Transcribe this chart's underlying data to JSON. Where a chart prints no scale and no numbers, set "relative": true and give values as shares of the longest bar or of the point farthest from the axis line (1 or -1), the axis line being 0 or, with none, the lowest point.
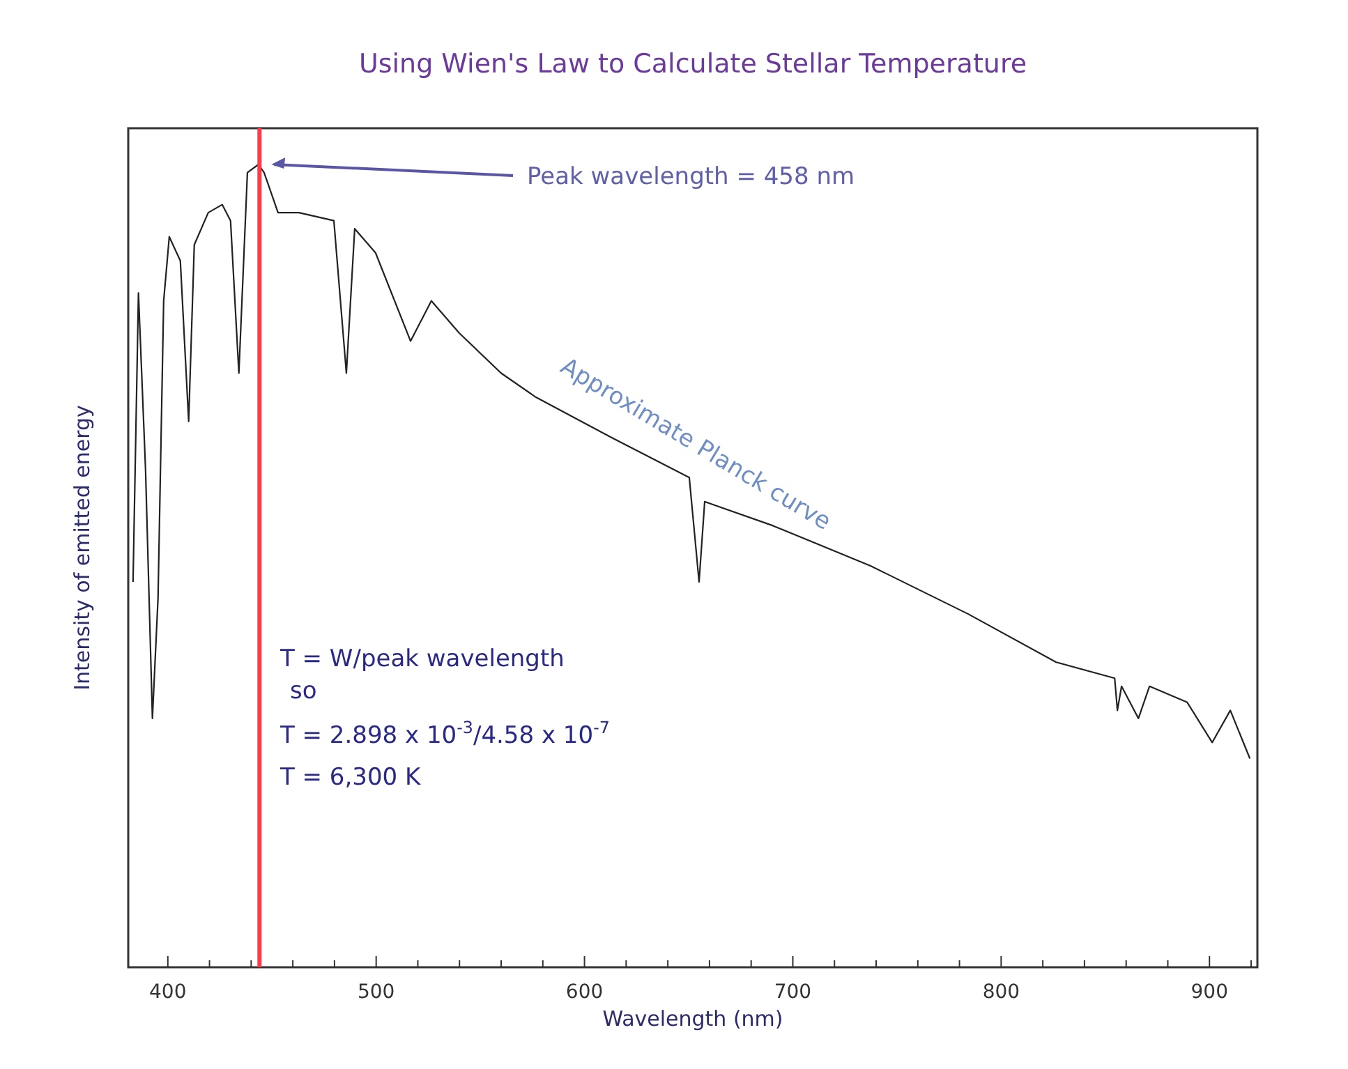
{
  "chart_data": {
    "type": "line",
    "title": "Using Wien's Law to Calculate Stellar Temperature",
    "xlabel": "Wavelength (nm)",
    "ylabel": "Intensity of emitted energy",
    "relative": true,
    "xlim": [
      381,
      923
    ],
    "xticks": [
      400,
      {
        "value": 420,
        "label": null
      },
      {
        "value": 440,
        "label": null
      },
      {
        "value": 460,
        "label": null
      },
      {
        "value": 480,
        "label": null
      },
      500,
      {
        "value": 520,
        "label": null
      },
      {
        "value": 540,
        "label": null
      },
      {
        "value": 560,
        "label": null
      },
      {
        "value": 580,
        "label": null
      },
      600,
      {
        "value": 620,
        "label": null
      },
      {
        "value": 640,
        "label": null
      },
      {
        "value": 660,
        "label": null
      },
      {
        "value": 680,
        "label": null
      },
      700,
      {
        "value": 720,
        "label": null
      },
      {
        "value": 740,
        "label": null
      },
      {
        "value": 760,
        "label": null
      },
      {
        "value": 780,
        "label": null
      },
      800,
      {
        "value": 820,
        "label": null
      },
      {
        "value": 840,
        "label": null
      },
      {
        "value": 860,
        "label": null
      },
      {
        "value": 880,
        "label": null
      },
      900,
      {
        "value": 920,
        "label": null
      }
    ],
    "tick_labels": "x",
    "line_style": "solid",
    "series": [
      {
        "color": "#222222",
        "x": [
          383.3,
          385.9,
          389.3,
          392.6,
          395.3,
          398.0,
          400.7,
          406.0,
          410.0,
          412.7,
          419.4,
          426.1,
          430.1,
          434.1,
          438.2,
          443.5,
          446.2,
          452.9,
          462.9,
          479.7,
          485.7,
          489.7,
          499.7,
          516.5,
          526.5,
          539.9,
          560.0,
          576.7,
          612.9,
          650.3,
          655.0,
          657.7,
          690.5,
          737.3,
          784.2,
          826.4,
          854.5,
          855.8,
          857.8,
          865.9,
          871.2,
          889.3,
          901.3,
          910.0,
          919.4
        ],
        "values": [
          0.48,
          0.84,
          0.62,
          0.31,
          0.46,
          0.83,
          0.91,
          0.88,
          0.68,
          0.9,
          0.94,
          0.95,
          0.93,
          0.74,
          0.99,
          1,
          0.99,
          0.94,
          0.94,
          0.93,
          0.74,
          0.92,
          0.89,
          0.78,
          0.83,
          0.79,
          0.74,
          0.71,
          0.66,
          0.61,
          0.48,
          0.58,
          0.55,
          0.5,
          0.44,
          0.38,
          0.36,
          0.32,
          0.35,
          0.31,
          0.35,
          0.33,
          0.28,
          0.32,
          0.26
        ]
      }
    ],
    "ref_lines": [
      {
        "axis": "x",
        "value": 444,
        "color": "#ff3b4a"
      }
    ],
    "annotations": [
      {
        "text": "Peak wavelength = 458 nm",
        "x": 447,
        "y": 1
      },
      "Approximate Planck curve",
      "T = W/peak wavelength",
      "so",
      "T = 2.898 x 10$^{-3}$/4.58 x 10$^{-7}$",
      "T = 6,300 K"
    ]
  }
}
